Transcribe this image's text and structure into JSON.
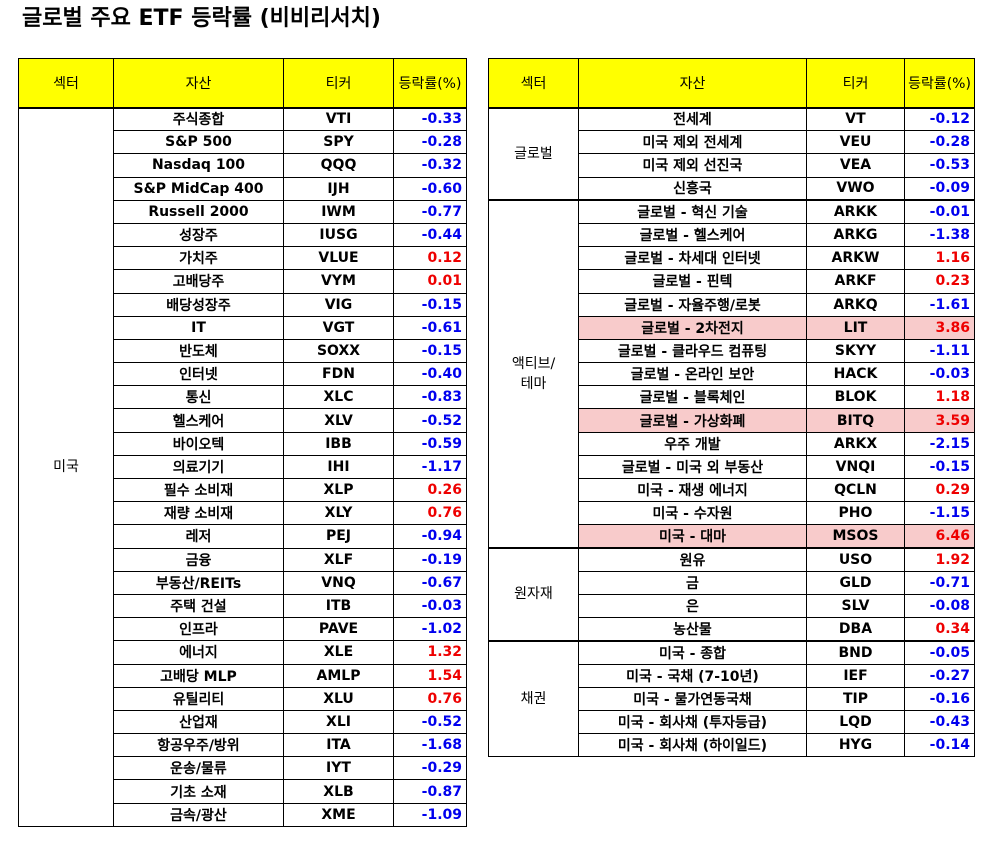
{
  "page": {
    "title": "글로벌 주요 ETF 등락률 (비비리서치)"
  },
  "headers": {
    "sector": "섹터",
    "asset": "자산",
    "ticker": "티커",
    "change": "등락률(%)"
  },
  "left_groups": [
    {
      "sector": "미국",
      "rows": [
        {
          "asset": "주식종합",
          "ticker": "VTI",
          "change": "-0.33"
        },
        {
          "asset": "S&P 500",
          "ticker": "SPY",
          "change": "-0.28"
        },
        {
          "asset": "Nasdaq 100",
          "ticker": "QQQ",
          "change": "-0.32"
        },
        {
          "asset": "S&P MidCap 400",
          "ticker": "IJH",
          "change": "-0.60"
        },
        {
          "asset": "Russell 2000",
          "ticker": "IWM",
          "change": "-0.77"
        },
        {
          "asset": "성장주",
          "ticker": "IUSG",
          "change": "-0.44"
        },
        {
          "asset": "가치주",
          "ticker": "VLUE",
          "change": "0.12"
        },
        {
          "asset": "고배당주",
          "ticker": "VYM",
          "change": "0.01"
        },
        {
          "asset": "배당성장주",
          "ticker": "VIG",
          "change": "-0.15"
        },
        {
          "asset": "IT",
          "ticker": "VGT",
          "change": "-0.61"
        },
        {
          "asset": "반도체",
          "ticker": "SOXX",
          "change": "-0.15"
        },
        {
          "asset": "인터넷",
          "ticker": "FDN",
          "change": "-0.40"
        },
        {
          "asset": "통신",
          "ticker": "XLC",
          "change": "-0.83"
        },
        {
          "asset": "헬스케어",
          "ticker": "XLV",
          "change": "-0.52"
        },
        {
          "asset": "바이오텍",
          "ticker": "IBB",
          "change": "-0.59"
        },
        {
          "asset": "의료기기",
          "ticker": "IHI",
          "change": "-1.17"
        },
        {
          "asset": "필수 소비재",
          "ticker": "XLP",
          "change": "0.26"
        },
        {
          "asset": "재량 소비재",
          "ticker": "XLY",
          "change": "0.76"
        },
        {
          "asset": "레저",
          "ticker": "PEJ",
          "change": "-0.94"
        },
        {
          "asset": "금융",
          "ticker": "XLF",
          "change": "-0.19"
        },
        {
          "asset": "부동산/REITs",
          "ticker": "VNQ",
          "change": "-0.67"
        },
        {
          "asset": "주택 건설",
          "ticker": "ITB",
          "change": "-0.03"
        },
        {
          "asset": "인프라",
          "ticker": "PAVE",
          "change": "-1.02"
        },
        {
          "asset": "에너지",
          "ticker": "XLE",
          "change": "1.32"
        },
        {
          "asset": "고배당 MLP",
          "ticker": "AMLP",
          "change": "1.54"
        },
        {
          "asset": "유틸리티",
          "ticker": "XLU",
          "change": "0.76"
        },
        {
          "asset": "산업재",
          "ticker": "XLI",
          "change": "-0.52"
        },
        {
          "asset": "항공우주/방위",
          "ticker": "ITA",
          "change": "-1.68"
        },
        {
          "asset": "운송/물류",
          "ticker": "IYT",
          "change": "-0.29"
        },
        {
          "asset": "기초 소재",
          "ticker": "XLB",
          "change": "-0.87"
        },
        {
          "asset": "금속/광산",
          "ticker": "XME",
          "change": "-1.09"
        }
      ]
    }
  ],
  "right_groups": [
    {
      "sector": "글로벌",
      "rows": [
        {
          "asset": "전세계",
          "ticker": "VT",
          "change": "-0.12"
        },
        {
          "asset": "미국 제외 전세계",
          "ticker": "VEU",
          "change": "-0.28"
        },
        {
          "asset": "미국 제외 선진국",
          "ticker": "VEA",
          "change": "-0.53"
        },
        {
          "asset": "신흥국",
          "ticker": "VWO",
          "change": "-0.09"
        }
      ]
    },
    {
      "sector": "액티브/\n테마",
      "rows": [
        {
          "asset": "글로벌 - 혁신 기술",
          "ticker": "ARKK",
          "change": "-0.01"
        },
        {
          "asset": "글로벌 - 헬스케어",
          "ticker": "ARKG",
          "change": "-1.38"
        },
        {
          "asset": "글로벌 - 차세대 인터넷",
          "ticker": "ARKW",
          "change": "1.16"
        },
        {
          "asset": "글로벌 - 핀텍",
          "ticker": "ARKF",
          "change": "0.23"
        },
        {
          "asset": "글로벌 - 자율주행/로봇",
          "ticker": "ARKQ",
          "change": "-1.61"
        },
        {
          "asset": "글로벌 - 2차전지",
          "ticker": "LIT",
          "change": "3.86",
          "highlight": true
        },
        {
          "asset": "글로벌 - 클라우드 컴퓨팅",
          "ticker": "SKYY",
          "change": "-1.11"
        },
        {
          "asset": "글로벌 - 온라인 보안",
          "ticker": "HACK",
          "change": "-0.03"
        },
        {
          "asset": "글로벌 - 블록체인",
          "ticker": "BLOK",
          "change": "1.18"
        },
        {
          "asset": "글로벌 - 가상화폐",
          "ticker": "BITQ",
          "change": "3.59",
          "highlight": true
        },
        {
          "asset": "우주 개발",
          "ticker": "ARKX",
          "change": "-2.15"
        },
        {
          "asset": "글로벌 - 미국 외 부동산",
          "ticker": "VNQI",
          "change": "-0.15"
        },
        {
          "asset": "미국 - 재생 에너지",
          "ticker": "QCLN",
          "change": "0.29"
        },
        {
          "asset": "미국 - 수자원",
          "ticker": "PHO",
          "change": "-1.15"
        },
        {
          "asset": "미국 - 대마",
          "ticker": "MSOS",
          "change": "6.46",
          "highlight": true
        }
      ]
    },
    {
      "sector": "원자재",
      "rows": [
        {
          "asset": "원유",
          "ticker": "USO",
          "change": "1.92"
        },
        {
          "asset": "금",
          "ticker": "GLD",
          "change": "-0.71"
        },
        {
          "asset": "은",
          "ticker": "SLV",
          "change": "-0.08"
        },
        {
          "asset": "농산물",
          "ticker": "DBA",
          "change": "0.34"
        }
      ]
    },
    {
      "sector": "채권",
      "rows": [
        {
          "asset": "미국 - 종합",
          "ticker": "BND",
          "change": "-0.05"
        },
        {
          "asset": "미국 - 국채 (7-10년)",
          "ticker": "IEF",
          "change": "-0.27"
        },
        {
          "asset": "미국 - 물가연동국채",
          "ticker": "TIP",
          "change": "-0.16"
        },
        {
          "asset": "미국 - 회사채 (투자등급)",
          "ticker": "LQD",
          "change": "-0.43"
        },
        {
          "asset": "미국 - 회사채 (하이일드)",
          "ticker": "HYG",
          "change": "-0.14"
        }
      ]
    }
  ],
  "colors": {
    "header_bg": "#ffff00",
    "negative": "#0000ee",
    "positive": "#ee0000",
    "highlight_bg": "#f8cbcb"
  }
}
